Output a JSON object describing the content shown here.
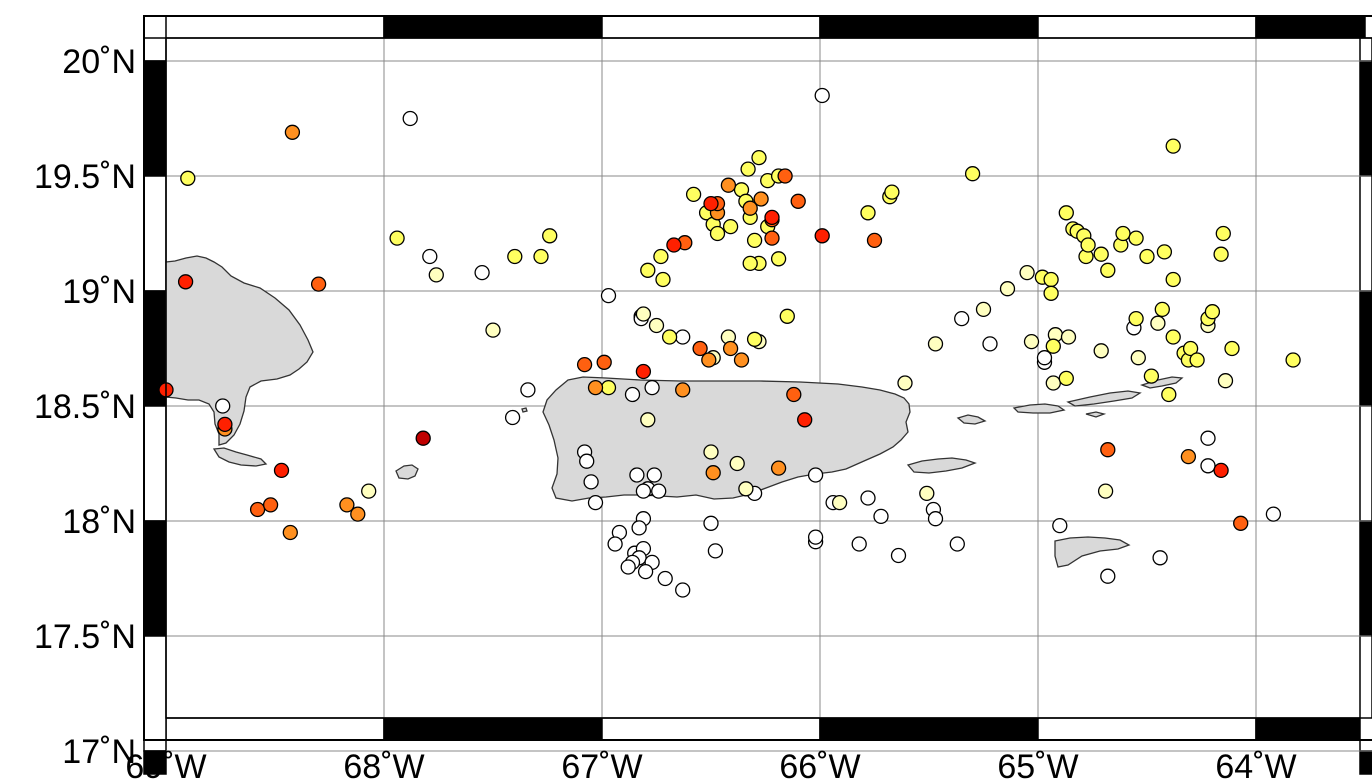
{
  "map": {
    "lon_range": [
      -69,
      -63.5
    ],
    "lat_range": [
      16.9,
      20.1
    ],
    "grid": true,
    "lon_ticks": [
      {
        "value": -69,
        "label": "69˚W"
      },
      {
        "value": -68,
        "label": "68˚W"
      },
      {
        "value": -67,
        "label": "67˚W"
      },
      {
        "value": -66,
        "label": "66˚W"
      },
      {
        "value": -65,
        "label": "65˚W"
      },
      {
        "value": -64,
        "label": "64˚W"
      }
    ],
    "lat_ticks": [
      {
        "value": 20,
        "label": "20˚N"
      },
      {
        "value": 19.5,
        "label": "19.5˚N"
      },
      {
        "value": 19,
        "label": "19˚N"
      },
      {
        "value": 18.5,
        "label": "18.5˚N"
      },
      {
        "value": 18,
        "label": "18˚N"
      },
      {
        "value": 17.5,
        "label": "17.5˚N"
      },
      {
        "value": 17,
        "label": "17˚N"
      }
    ],
    "land_color": "#d9d9d9",
    "water_color": "#ffffff",
    "colors": {
      "white": "#ffffff",
      "pale": "#ffffc0",
      "yellow": "#ffff60",
      "orange": "#ff9020",
      "darkorange": "#ff6010",
      "red": "#ff2000",
      "darkred": "#c00000"
    }
  },
  "chart_data": {
    "type": "scatter",
    "title": "",
    "xlabel": "",
    "ylabel": "",
    "xlim": [
      -69,
      -63.5
    ],
    "ylim": [
      16.9,
      20.1
    ],
    "series": [
      {
        "color": "white",
        "points": [
          [
            -65.99,
            19.85
          ],
          [
            -67.88,
            19.75
          ],
          [
            -67.79,
            19.15
          ],
          [
            -67.55,
            19.08
          ],
          [
            -66.97,
            18.98
          ],
          [
            -66.82,
            18.89
          ],
          [
            -66.82,
            18.88
          ],
          [
            -66.63,
            18.8
          ],
          [
            -66.77,
            18.58
          ],
          [
            -66.86,
            18.55
          ],
          [
            -67.34,
            18.57
          ],
          [
            -67.41,
            18.45
          ],
          [
            -67.08,
            18.3
          ],
          [
            -67.07,
            18.26
          ],
          [
            -67.05,
            18.17
          ],
          [
            -67.03,
            18.08
          ],
          [
            -66.84,
            18.2
          ],
          [
            -66.79,
            18.14
          ],
          [
            -66.81,
            18.13
          ],
          [
            -66.76,
            18.2
          ],
          [
            -66.74,
            18.13
          ],
          [
            -66.81,
            18.01
          ],
          [
            -66.83,
            17.97
          ],
          [
            -66.92,
            17.95
          ],
          [
            -66.94,
            17.9
          ],
          [
            -66.85,
            17.86
          ],
          [
            -66.81,
            17.88
          ],
          [
            -66.83,
            17.84
          ],
          [
            -66.77,
            17.82
          ],
          [
            -66.86,
            17.82
          ],
          [
            -66.8,
            17.78
          ],
          [
            -66.71,
            17.75
          ],
          [
            -66.63,
            17.7
          ],
          [
            -66.88,
            17.8
          ],
          [
            -66.5,
            17.99
          ],
          [
            -66.48,
            17.87
          ],
          [
            -66.3,
            18.12
          ],
          [
            -66.02,
            18.2
          ],
          [
            -65.94,
            18.08
          ],
          [
            -66.02,
            17.91
          ],
          [
            -66.02,
            17.93
          ],
          [
            -65.82,
            17.9
          ],
          [
            -65.78,
            18.1
          ],
          [
            -65.72,
            18.02
          ],
          [
            -65.64,
            17.85
          ],
          [
            -65.48,
            18.05
          ],
          [
            -65.47,
            18.01
          ],
          [
            -65.37,
            17.9
          ],
          [
            -65.22,
            18.77
          ],
          [
            -64.9,
            17.98
          ],
          [
            -64.68,
            17.76
          ],
          [
            -64.44,
            17.84
          ],
          [
            -64.22,
            18.36
          ],
          [
            -64.22,
            18.24
          ],
          [
            -63.92,
            18.03
          ],
          [
            -68.74,
            18.5
          ],
          [
            -65.35,
            18.88
          ],
          [
            -64.56,
            18.84
          ],
          [
            -64.97,
            18.69
          ],
          [
            -64.97,
            18.71
          ]
        ]
      },
      {
        "color": "pale",
        "points": [
          [
            -68.07,
            18.13
          ],
          [
            -67.76,
            19.07
          ],
          [
            -67.5,
            18.83
          ],
          [
            -66.81,
            18.9
          ],
          [
            -66.79,
            18.44
          ],
          [
            -66.75,
            18.85
          ],
          [
            -66.42,
            18.8
          ],
          [
            -66.28,
            18.78
          ],
          [
            -66.49,
            18.71
          ],
          [
            -66.5,
            18.3
          ],
          [
            -66.38,
            18.25
          ],
          [
            -66.34,
            18.14
          ],
          [
            -65.91,
            18.08
          ],
          [
            -65.61,
            18.6
          ],
          [
            -65.51,
            18.12
          ],
          [
            -65.47,
            18.77
          ],
          [
            -65.25,
            18.92
          ],
          [
            -65.14,
            19.01
          ],
          [
            -65.05,
            19.08
          ],
          [
            -65.03,
            18.78
          ],
          [
            -64.92,
            18.81
          ],
          [
            -64.93,
            18.6
          ],
          [
            -64.86,
            18.8
          ],
          [
            -64.71,
            18.74
          ],
          [
            -64.69,
            18.13
          ],
          [
            -64.54,
            18.71
          ],
          [
            -64.45,
            18.86
          ],
          [
            -64.14,
            18.61
          ],
          [
            -64.22,
            18.85
          ]
        ]
      },
      {
        "color": "yellow",
        "points": [
          [
            -68.9,
            19.49
          ],
          [
            -67.94,
            19.23
          ],
          [
            -67.4,
            19.15
          ],
          [
            -67.28,
            19.15
          ],
          [
            -67.24,
            19.24
          ],
          [
            -66.97,
            18.58
          ],
          [
            -66.79,
            19.09
          ],
          [
            -66.73,
            19.15
          ],
          [
            -66.72,
            19.05
          ],
          [
            -66.69,
            18.8
          ],
          [
            -66.58,
            19.42
          ],
          [
            -66.52,
            19.34
          ],
          [
            -66.49,
            19.29
          ],
          [
            -66.47,
            19.25
          ],
          [
            -66.41,
            19.28
          ],
          [
            -66.32,
            19.32
          ],
          [
            -66.36,
            19.44
          ],
          [
            -66.33,
            19.53
          ],
          [
            -66.28,
            19.58
          ],
          [
            -66.24,
            19.48
          ],
          [
            -66.19,
            19.5
          ],
          [
            -66.34,
            19.39
          ],
          [
            -66.3,
            19.22
          ],
          [
            -66.24,
            19.28
          ],
          [
            -66.28,
            19.12
          ],
          [
            -66.32,
            19.12
          ],
          [
            -66.19,
            19.14
          ],
          [
            -66.15,
            18.89
          ],
          [
            -66.3,
            18.79
          ],
          [
            -65.78,
            19.34
          ],
          [
            -65.68,
            19.41
          ],
          [
            -65.67,
            19.43
          ],
          [
            -65.3,
            19.51
          ],
          [
            -64.98,
            19.06
          ],
          [
            -64.94,
            19.05
          ],
          [
            -64.94,
            18.99
          ],
          [
            -64.93,
            18.76
          ],
          [
            -64.87,
            18.62
          ],
          [
            -64.87,
            19.34
          ],
          [
            -64.84,
            19.27
          ],
          [
            -64.82,
            19.26
          ],
          [
            -64.79,
            19.24
          ],
          [
            -64.78,
            19.15
          ],
          [
            -64.77,
            19.2
          ],
          [
            -64.71,
            19.16
          ],
          [
            -64.68,
            19.09
          ],
          [
            -64.62,
            19.2
          ],
          [
            -64.61,
            19.25
          ],
          [
            -64.55,
            19.23
          ],
          [
            -64.5,
            19.15
          ],
          [
            -64.48,
            18.63
          ],
          [
            -64.43,
            18.92
          ],
          [
            -64.38,
            18.8
          ],
          [
            -64.33,
            18.73
          ],
          [
            -64.31,
            18.7
          ],
          [
            -64.3,
            18.75
          ],
          [
            -64.27,
            18.7
          ],
          [
            -64.22,
            18.88
          ],
          [
            -64.2,
            18.91
          ],
          [
            -64.16,
            19.16
          ],
          [
            -64.15,
            19.25
          ],
          [
            -64.11,
            18.75
          ],
          [
            -63.83,
            18.7
          ],
          [
            -64.4,
            18.55
          ],
          [
            -64.38,
            19.63
          ],
          [
            -64.38,
            19.05
          ],
          [
            -64.42,
            19.17
          ],
          [
            -64.55,
            18.88
          ]
        ]
      },
      {
        "color": "orange",
        "points": [
          [
            -68.42,
            19.69
          ],
          [
            -68.43,
            17.95
          ],
          [
            -68.17,
            18.07
          ],
          [
            -68.12,
            18.03
          ],
          [
            -68.73,
            18.4
          ],
          [
            -66.42,
            19.46
          ],
          [
            -66.47,
            19.34
          ],
          [
            -66.32,
            19.36
          ],
          [
            -66.27,
            19.4
          ],
          [
            -66.41,
            18.75
          ],
          [
            -66.36,
            18.7
          ],
          [
            -66.51,
            18.7
          ],
          [
            -66.63,
            18.57
          ],
          [
            -67.03,
            18.58
          ],
          [
            -66.49,
            18.21
          ],
          [
            -66.19,
            18.23
          ],
          [
            -64.31,
            18.28
          ]
        ]
      },
      {
        "color": "darkorange",
        "points": [
          [
            -68.3,
            19.03
          ],
          [
            -68.58,
            18.05
          ],
          [
            -68.52,
            18.07
          ],
          [
            -66.16,
            19.5
          ],
          [
            -66.1,
            19.39
          ],
          [
            -66.62,
            19.21
          ],
          [
            -66.47,
            19.38
          ],
          [
            -66.22,
            19.31
          ],
          [
            -66.22,
            19.23
          ],
          [
            -66.12,
            18.55
          ],
          [
            -65.75,
            19.22
          ],
          [
            -66.99,
            18.69
          ],
          [
            -67.08,
            18.68
          ],
          [
            -66.55,
            18.75
          ],
          [
            -64.68,
            18.31
          ],
          [
            -64.07,
            17.99
          ]
        ]
      },
      {
        "color": "red",
        "points": [
          [
            -68.91,
            19.04
          ],
          [
            -69.0,
            18.57
          ],
          [
            -68.73,
            18.42
          ],
          [
            -68.47,
            18.22
          ],
          [
            -66.67,
            19.2
          ],
          [
            -66.5,
            19.38
          ],
          [
            -66.22,
            19.32
          ],
          [
            -65.99,
            19.24
          ],
          [
            -66.81,
            18.65
          ],
          [
            -66.07,
            18.44
          ],
          [
            -64.16,
            18.22
          ]
        ]
      },
      {
        "color": "darkred",
        "points": [
          [
            -67.82,
            18.36
          ]
        ]
      }
    ]
  }
}
